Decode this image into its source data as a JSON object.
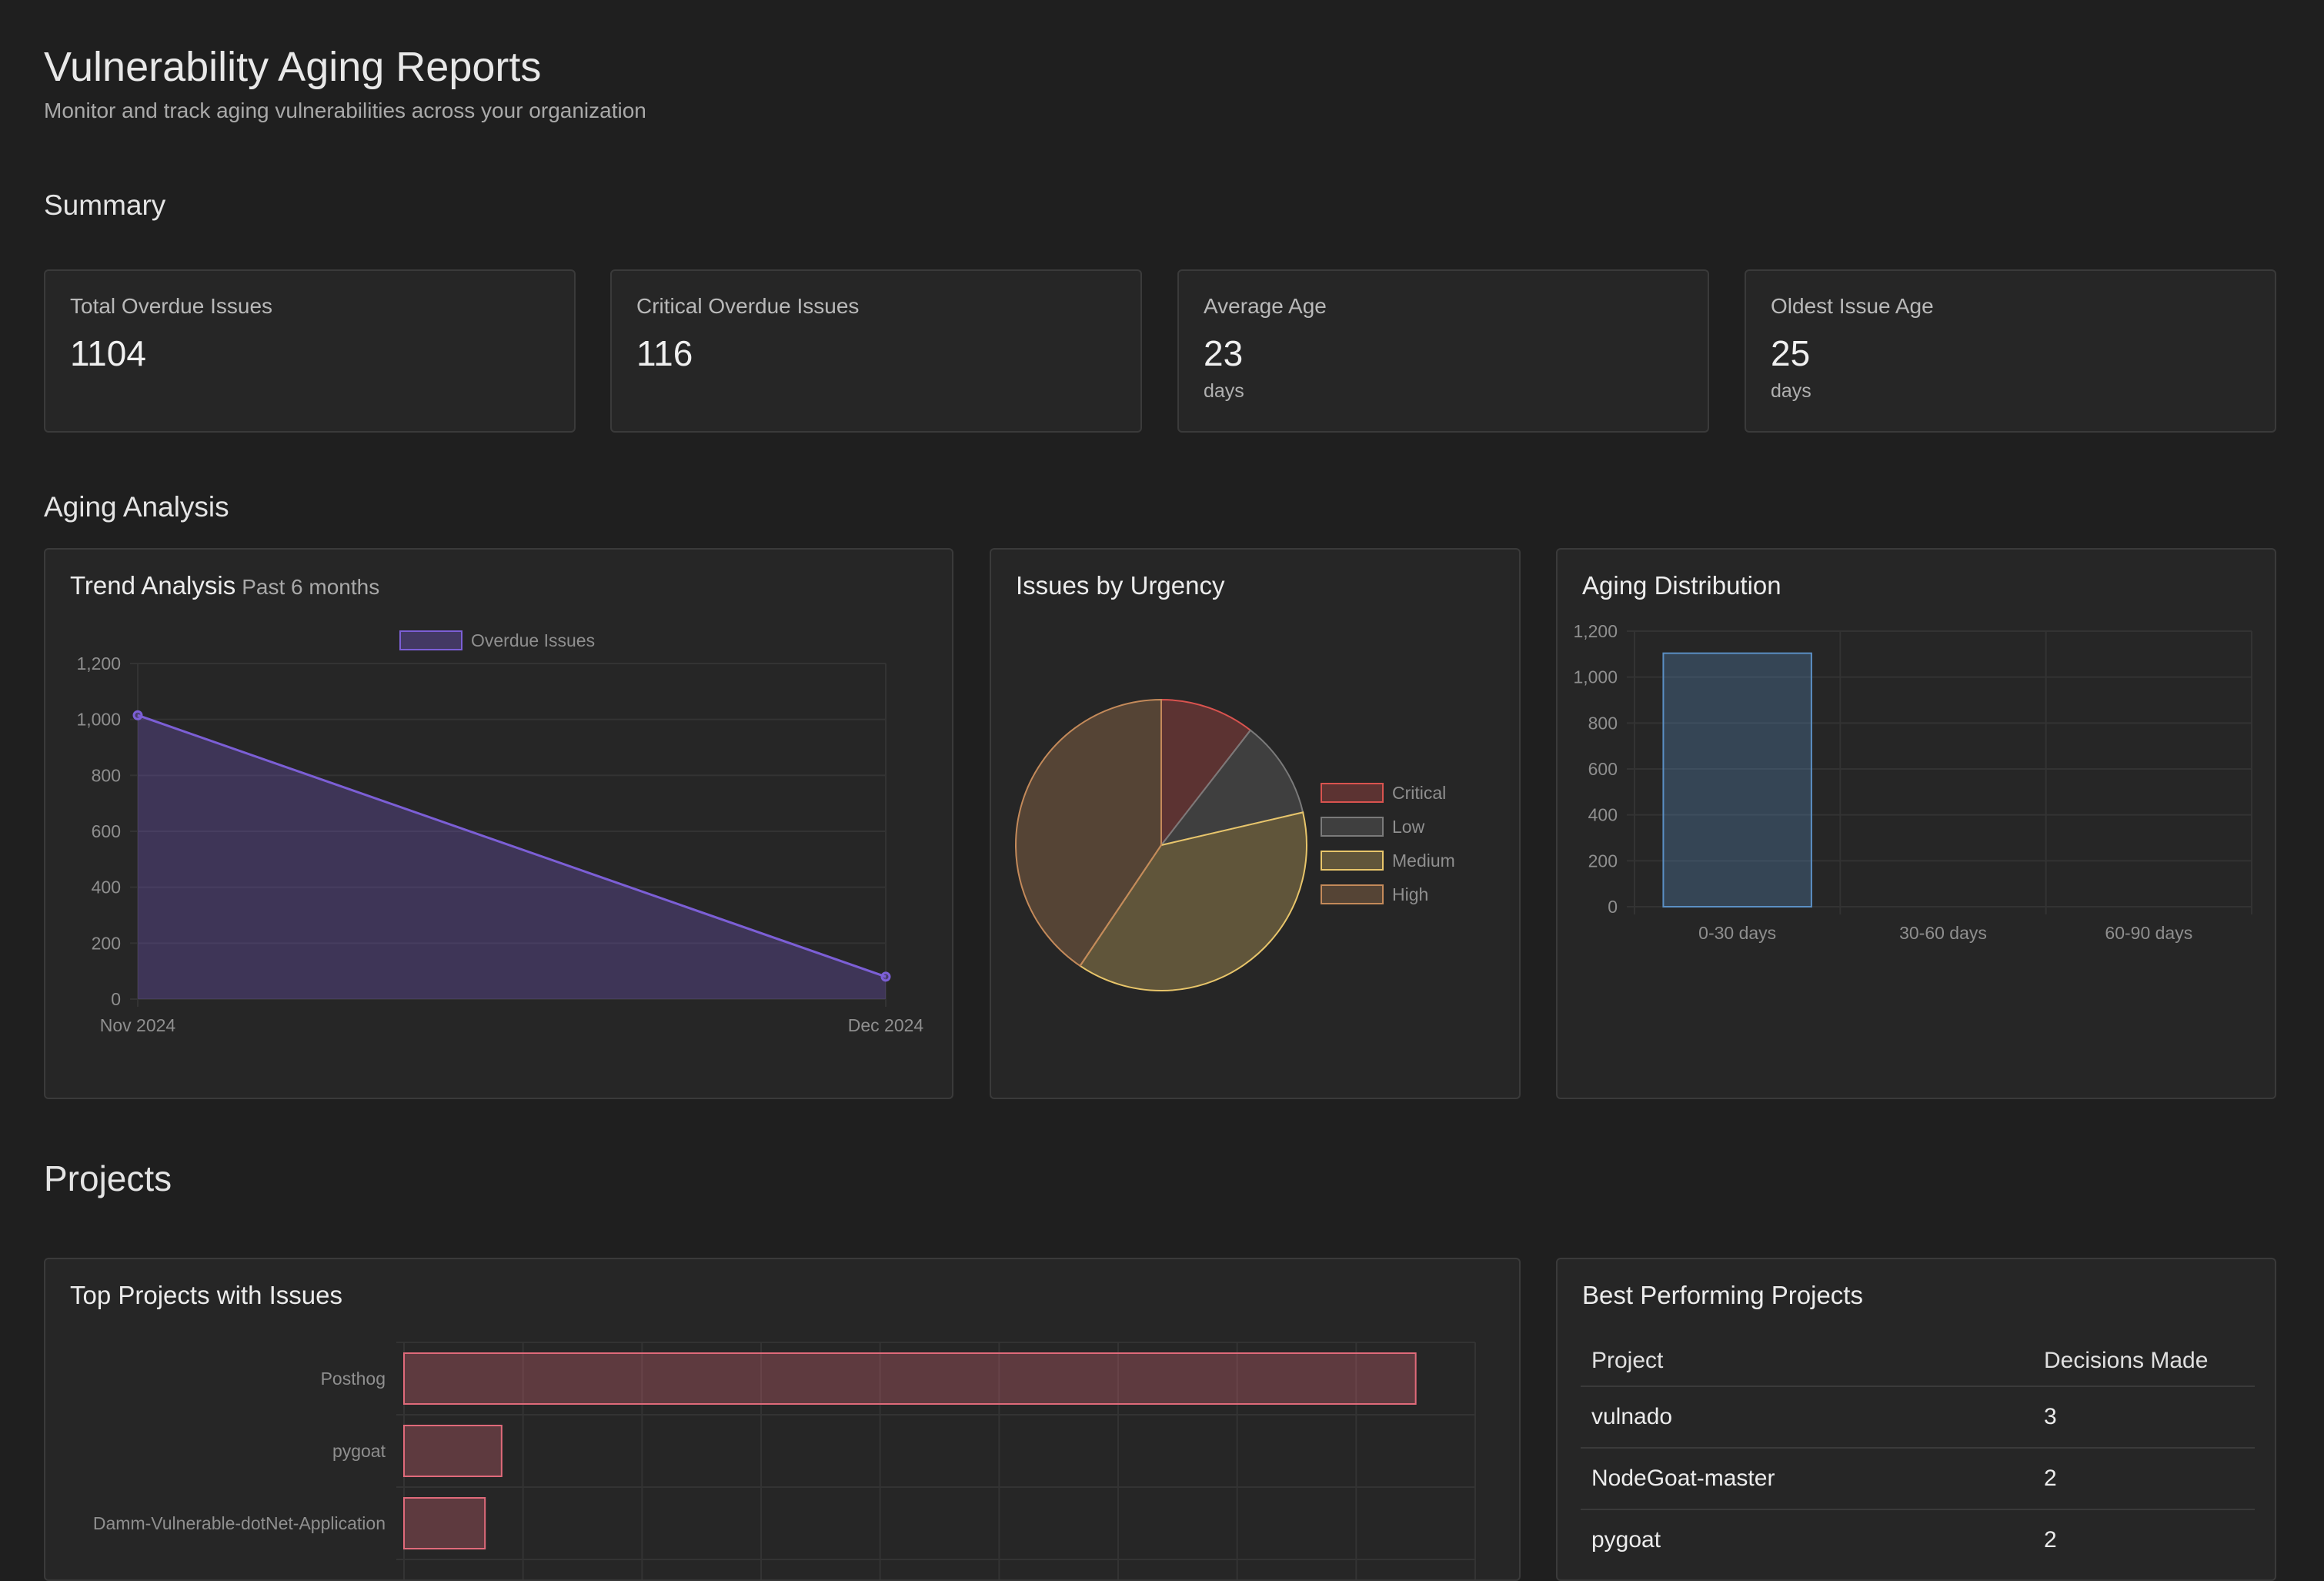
{
  "header": {
    "title": "Vulnerability Aging Reports",
    "subtitle": "Monitor and track aging vulnerabilities across your organization"
  },
  "summary": {
    "section_title": "Summary",
    "cards": [
      {
        "label": "Total Overdue Issues",
        "value": "1104",
        "unit": ""
      },
      {
        "label": "Critical Overdue Issues",
        "value": "116",
        "unit": ""
      },
      {
        "label": "Average Age",
        "value": "23",
        "unit": "days"
      },
      {
        "label": "Oldest Issue Age",
        "value": "25",
        "unit": "days"
      }
    ]
  },
  "aging": {
    "section_title": "Aging Analysis",
    "trend": {
      "title": "Trend Analysis",
      "subtitle": "Past 6 months"
    },
    "urgency": {
      "title": "Issues by Urgency"
    },
    "distribution": {
      "title": "Aging Distribution"
    }
  },
  "projects": {
    "section_title": "Projects",
    "top_title": "Top Projects with Issues",
    "best": {
      "title": "Best Performing Projects",
      "columns": [
        "Project",
        "Decisions Made"
      ],
      "rows": [
        {
          "project": "vulnado",
          "decisions": "3"
        },
        {
          "project": "NodeGoat-master",
          "decisions": "2"
        },
        {
          "project": "pygoat",
          "decisions": "2"
        }
      ]
    }
  },
  "colors": {
    "trend": "#7c5fd6",
    "critical": "#d9534f",
    "low": "#7a7a7a",
    "medium": "#e8c56a",
    "high": "#c48a5a",
    "distribution": "#5b8fc4",
    "projects": "#e06a7a"
  },
  "chart_data": [
    {
      "type": "area",
      "title": "Trend Analysis",
      "subtitle": "Past 6 months",
      "x": [
        "Nov 2024",
        "Dec 2024"
      ],
      "series": [
        {
          "name": "Overdue Issues",
          "values": [
            1015,
            80
          ]
        }
      ],
      "yticks": [
        "0",
        "200",
        "400",
        "600",
        "800",
        "1,000",
        "1,200"
      ],
      "ylim": [
        0,
        1200
      ],
      "legend": "top",
      "grid": true
    },
    {
      "type": "pie",
      "title": "Issues by Urgency",
      "categories": [
        "Critical",
        "Low",
        "Medium",
        "High"
      ],
      "values": [
        116,
        120,
        420,
        448
      ],
      "legend": "right"
    },
    {
      "type": "bar",
      "title": "Aging Distribution",
      "categories": [
        "0-30 days",
        "30-60 days",
        "60-90 days"
      ],
      "values": [
        1104,
        0,
        0
      ],
      "yticks": [
        "0",
        "200",
        "400",
        "600",
        "800",
        "1,000",
        "1,200"
      ],
      "ylim": [
        0,
        1200
      ],
      "grid": true
    },
    {
      "type": "bar",
      "orientation": "horizontal",
      "title": "Top Projects with Issues",
      "categories": [
        "Posthog",
        "pygoat",
        "Damm-Vulnerable-dotNet-Application"
      ],
      "values": [
        850,
        82,
        68
      ],
      "xlim": [
        0,
        900
      ],
      "grid": true
    }
  ]
}
